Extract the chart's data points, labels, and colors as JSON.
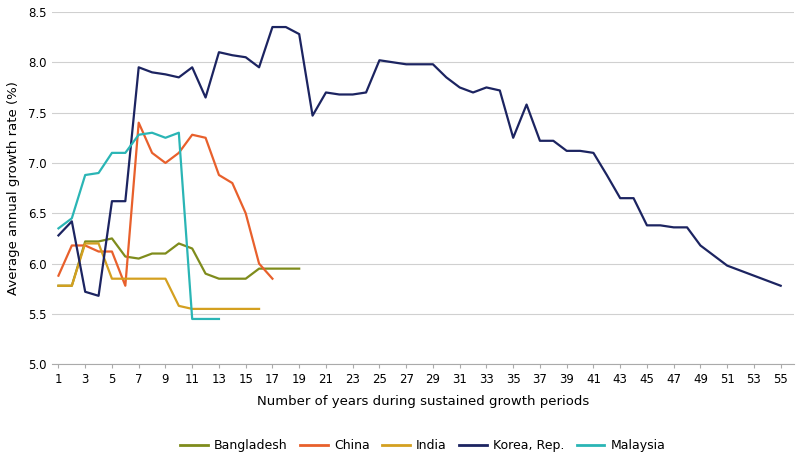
{
  "xlabel": "Number of years during sustained growth periods",
  "ylabel": "Average annual growth rate (%)",
  "ylim": [
    5.0,
    8.5
  ],
  "background_color": "#ffffff",
  "grid_color": "#d0d0d0",
  "series": {
    "Bangladesh": {
      "color": "#7f8c1c",
      "x": [
        1,
        2,
        3,
        4,
        5,
        6,
        7,
        8,
        9,
        10,
        11,
        12,
        13,
        14,
        15,
        16,
        17,
        18,
        19
      ],
      "y": [
        5.78,
        5.78,
        6.22,
        6.22,
        6.25,
        6.07,
        6.05,
        6.1,
        6.1,
        6.2,
        6.15,
        5.9,
        5.85,
        5.85,
        5.85,
        5.95,
        5.95,
        5.95,
        5.95
      ]
    },
    "China": {
      "color": "#e8602c",
      "x": [
        1,
        2,
        3,
        4,
        5,
        6,
        7,
        8,
        9,
        10,
        11,
        12,
        13,
        14,
        15,
        16,
        17
      ],
      "y": [
        5.88,
        6.18,
        6.18,
        6.12,
        6.12,
        5.78,
        7.4,
        7.1,
        7.0,
        7.1,
        7.28,
        7.25,
        6.88,
        6.8,
        6.5,
        6.0,
        5.85
      ]
    },
    "India": {
      "color": "#d4a020",
      "x": [
        1,
        2,
        3,
        4,
        5,
        6,
        7,
        8,
        9,
        10,
        11,
        12,
        13,
        14,
        15,
        16
      ],
      "y": [
        5.78,
        5.78,
        6.2,
        6.2,
        5.85,
        5.85,
        5.85,
        5.85,
        5.85,
        5.58,
        5.55,
        5.55,
        5.55,
        5.55,
        5.55,
        5.55
      ]
    },
    "Korea, Rep.": {
      "color": "#1c2461",
      "x": [
        1,
        2,
        3,
        4,
        5,
        6,
        7,
        8,
        9,
        10,
        11,
        12,
        13,
        14,
        15,
        16,
        17,
        18,
        19,
        20,
        21,
        22,
        23,
        24,
        25,
        26,
        27,
        28,
        29,
        30,
        31,
        32,
        33,
        34,
        35,
        36,
        37,
        38,
        39,
        40,
        41,
        42,
        43,
        44,
        45,
        46,
        47,
        48,
        49,
        50,
        51,
        52,
        53,
        54,
        55
      ],
      "y": [
        6.28,
        6.42,
        5.72,
        5.68,
        6.62,
        6.62,
        7.95,
        7.9,
        7.88,
        7.85,
        7.95,
        7.65,
        8.1,
        8.07,
        8.05,
        7.95,
        8.35,
        8.35,
        8.28,
        7.47,
        7.7,
        7.68,
        7.68,
        7.7,
        8.02,
        8.0,
        7.98,
        7.98,
        7.98,
        7.85,
        7.75,
        7.7,
        7.75,
        7.72,
        7.25,
        7.58,
        7.22,
        7.22,
        7.12,
        7.12,
        7.1,
        6.88,
        6.65,
        6.65,
        6.38,
        6.38,
        6.36,
        6.36,
        6.18,
        6.08,
        5.98,
        5.93,
        5.88,
        5.83,
        5.78
      ]
    },
    "Malaysia": {
      "color": "#2ab5b5",
      "x": [
        1,
        2,
        3,
        4,
        5,
        6,
        7,
        8,
        9,
        10,
        11,
        12,
        13
      ],
      "y": [
        6.35,
        6.45,
        6.88,
        6.9,
        7.1,
        7.1,
        7.28,
        7.3,
        7.25,
        7.3,
        5.45,
        5.45,
        5.45
      ]
    }
  },
  "xticks": [
    1,
    3,
    5,
    7,
    9,
    11,
    13,
    15,
    17,
    19,
    21,
    23,
    25,
    27,
    29,
    31,
    33,
    35,
    37,
    39,
    41,
    43,
    45,
    47,
    49,
    51,
    53,
    55
  ],
  "ytick_labels": [
    "5.0",
    "5.5",
    "6.0",
    "6.5",
    "7.0",
    "7.5",
    "8.0",
    "8.5"
  ],
  "ytick_values": [
    5.0,
    5.5,
    6.0,
    6.5,
    7.0,
    7.5,
    8.0,
    8.5
  ],
  "legend_entries": [
    "Bangladesh",
    "China",
    "India",
    "Korea, Rep.",
    "Malaysia"
  ],
  "legend_colors": [
    "#7f8c1c",
    "#e8602c",
    "#d4a020",
    "#1c2461",
    "#2ab5b5"
  ],
  "tick_fontsize": 8.5,
  "label_fontsize": 9.5,
  "legend_fontsize": 9.0,
  "linewidth": 1.6
}
